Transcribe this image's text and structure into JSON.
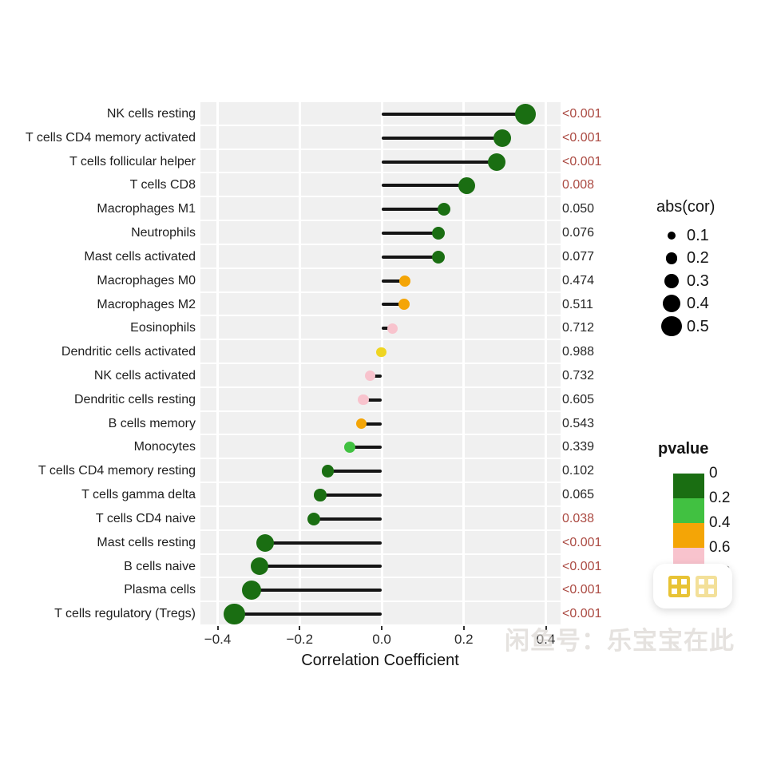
{
  "watermark": {
    "badge_text": "闲鱼",
    "line_text": "闲鱼号：乐宝宝在此",
    "logo_color": "#e8c335"
  },
  "chart_data": {
    "type": "lollipop",
    "xlabel": "Correlation Coefficient",
    "xlim": [
      -0.442,
      0.436
    ],
    "x_ticks": [
      -0.4,
      -0.2,
      0.0,
      0.2,
      0.4
    ],
    "x_tick_labels": [
      "−0.4",
      "−0.2",
      "0.0",
      "0.2",
      "0.4"
    ],
    "grid": "white-on-gray-bands",
    "palette": {
      "dark_green": "#1a6e12",
      "green": "#41c141",
      "orange": "#f4a506",
      "pink": "#f8c3cd",
      "yellow": "#efd522",
      "p_red": "#ab4a42",
      "p_black": "#262626",
      "band_bg": "#f0f0f0",
      "stem": "#141414"
    },
    "rows": [
      {
        "label": "NK cells resting",
        "cor": 0.35,
        "pvalue": "<0.001",
        "significant": true,
        "band": "dark_green",
        "r": 13
      },
      {
        "label": "T cells CD4 memory activated",
        "cor": 0.293,
        "pvalue": "<0.001",
        "significant": true,
        "band": "dark_green",
        "r": 11
      },
      {
        "label": "T cells follicular helper",
        "cor": 0.28,
        "pvalue": "<0.001",
        "significant": true,
        "band": "dark_green",
        "r": 11
      },
      {
        "label": "T cells CD8",
        "cor": 0.208,
        "pvalue": "0.008",
        "significant": true,
        "band": "dark_green",
        "r": 10.5
      },
      {
        "label": "Macrophages M1",
        "cor": 0.151,
        "pvalue": "0.050",
        "significant": false,
        "band": "dark_green",
        "r": 8
      },
      {
        "label": "Neutrophils",
        "cor": 0.138,
        "pvalue": "0.076",
        "significant": false,
        "band": "dark_green",
        "r": 8
      },
      {
        "label": "Mast cells activated",
        "cor": 0.138,
        "pvalue": "0.077",
        "significant": false,
        "band": "dark_green",
        "r": 8
      },
      {
        "label": "Macrophages M0",
        "cor": 0.056,
        "pvalue": "0.474",
        "significant": false,
        "band": "orange",
        "r": 7
      },
      {
        "label": "Macrophages M2",
        "cor": 0.054,
        "pvalue": "0.511",
        "significant": false,
        "band": "orange",
        "r": 7
      },
      {
        "label": "Eosinophils",
        "cor": 0.027,
        "pvalue": "0.712",
        "significant": false,
        "band": "pink",
        "r": 6.5
      },
      {
        "label": "Dendritic cells activated",
        "cor": -0.001,
        "pvalue": "0.988",
        "significant": false,
        "band": "yellow",
        "r": 6.3
      },
      {
        "label": "NK cells activated",
        "cor": -0.029,
        "pvalue": "0.732",
        "significant": false,
        "band": "pink",
        "r": 6.5
      },
      {
        "label": "Dendritic cells resting",
        "cor": -0.045,
        "pvalue": "0.605",
        "significant": false,
        "band": "pink",
        "r": 6.7
      },
      {
        "label": "B cells memory",
        "cor": -0.05,
        "pvalue": "0.543",
        "significant": false,
        "band": "orange",
        "r": 6.7
      },
      {
        "label": "Monocytes",
        "cor": -0.078,
        "pvalue": "0.339",
        "significant": false,
        "band": "green",
        "r": 7
      },
      {
        "label": "T cells CD4 memory resting",
        "cor": -0.132,
        "pvalue": "0.102",
        "significant": false,
        "band": "dark_green",
        "r": 7.7
      },
      {
        "label": "T cells gamma delta",
        "cor": -0.15,
        "pvalue": "0.065",
        "significant": false,
        "band": "dark_green",
        "r": 7.7
      },
      {
        "label": "T cells CD4 naive",
        "cor": -0.165,
        "pvalue": "0.038",
        "significant": true,
        "band": "dark_green",
        "r": 8
      },
      {
        "label": "Mast cells resting",
        "cor": -0.285,
        "pvalue": "<0.001",
        "significant": true,
        "band": "dark_green",
        "r": 11
      },
      {
        "label": "B cells naive",
        "cor": -0.297,
        "pvalue": "<0.001",
        "significant": true,
        "band": "dark_green",
        "r": 11
      },
      {
        "label": "Plasma cells",
        "cor": -0.318,
        "pvalue": "<0.001",
        "significant": true,
        "band": "dark_green",
        "r": 12
      },
      {
        "label": "T cells regulatory (Tregs)",
        "cor": -0.359,
        "pvalue": "<0.001",
        "significant": true,
        "band": "dark_green",
        "r": 13.3
      }
    ],
    "legend_size": {
      "title": "abs(cor)",
      "items": [
        {
          "label": "0.1",
          "r": 5.3
        },
        {
          "label": "0.2",
          "r": 7.3
        },
        {
          "label": "0.3",
          "r": 9.3
        },
        {
          "label": "0.4",
          "r": 11
        },
        {
          "label": "0.5",
          "r": 12.7
        }
      ]
    },
    "legend_color": {
      "title": "pvalue",
      "bands": [
        {
          "band": "dark_green",
          "range": "0-0.2"
        },
        {
          "band": "green",
          "range": "0.2-0.4"
        },
        {
          "band": "orange",
          "range": "0.4-0.6"
        },
        {
          "band": "pink",
          "range": "0.6-0.8"
        },
        {
          "band": "yellow",
          "range": "0.8-1"
        }
      ],
      "tick_labels": [
        "0",
        "0.2",
        "0.4",
        "0.6",
        "0.8"
      ]
    }
  }
}
